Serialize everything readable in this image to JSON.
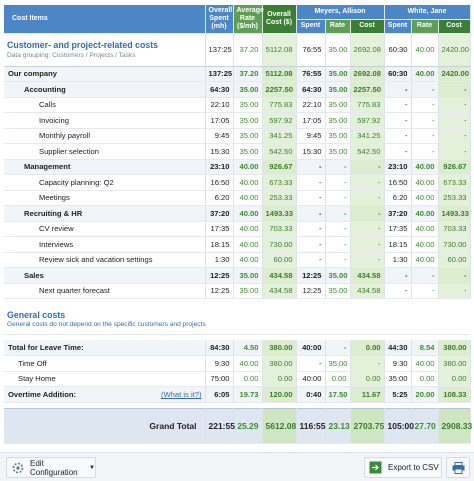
{
  "header": {
    "cost_items": "Cost Items",
    "overall_spent": "Overall Spent (mh)",
    "average_rate": "Average Rate ($/mh)",
    "overall_cost": "Overall Cost ($)",
    "people": [
      {
        "name": "Meyers, Allison",
        "columns": [
          "Spent",
          "Rate",
          "Cost"
        ]
      },
      {
        "name": "White, Jane",
        "columns": [
          "Spent",
          "Rate",
          "Cost"
        ]
      }
    ]
  },
  "customer_costs": {
    "title": "Customer- and project-related costs",
    "subtitle": "Data grouping: Customers / Projects / Tasks",
    "values": [
      "137:25",
      "37.20",
      "5112.08",
      "76:55",
      "35.00",
      "2692.08",
      "60:30",
      "40.00",
      "2420.00"
    ],
    "clients": [
      {
        "name": "Our company",
        "values": [
          "137:25",
          "37.20",
          "5112.08",
          "76:55",
          "35.00",
          "2692.08",
          "60:30",
          "40.00",
          "2420.00"
        ],
        "projects": [
          {
            "name": "Accounting",
            "values": [
              "64:30",
              "35.00",
              "2257.50",
              "64:30",
              "35.00",
              "2257.50",
              "-",
              "-",
              "-"
            ],
            "tasks": [
              {
                "name": "Calls",
                "values": [
                  "22:10",
                  "35.00",
                  "775.83",
                  "22:10",
                  "35.00",
                  "775.83",
                  "-",
                  "-",
                  "-"
                ]
              },
              {
                "name": "Invoicing",
                "values": [
                  "17:05",
                  "35.00",
                  "597.92",
                  "17:05",
                  "35.00",
                  "597.92",
                  "-",
                  "-",
                  "-"
                ]
              },
              {
                "name": "Monthly payroll",
                "values": [
                  "9:45",
                  "35.00",
                  "341.25",
                  "9:45",
                  "35.00",
                  "341.25",
                  "-",
                  "-",
                  "-"
                ]
              },
              {
                "name": "Supplier selection",
                "values": [
                  "15:30",
                  "35.00",
                  "542.50",
                  "15:30",
                  "35.00",
                  "542.50",
                  "-",
                  "-",
                  "-"
                ]
              }
            ]
          },
          {
            "name": "Management",
            "values": [
              "23:10",
              "40.00",
              "926.67",
              "-",
              "-",
              "-",
              "23:10",
              "40.00",
              "926.67"
            ],
            "tasks": [
              {
                "name": "Capacity planning: Q2",
                "values": [
                  "16:50",
                  "40.00",
                  "673.33",
                  "-",
                  "-",
                  "-",
                  "16:50",
                  "40.00",
                  "673.33"
                ]
              },
              {
                "name": "Meetings",
                "values": [
                  "6:20",
                  "40.00",
                  "253.33",
                  "-",
                  "-",
                  "-",
                  "6:20",
                  "40.00",
                  "253.33"
                ]
              }
            ]
          },
          {
            "name": "Recruiting & HR",
            "values": [
              "37:20",
              "40.00",
              "1493.33",
              "-",
              "-",
              "-",
              "37:20",
              "40.00",
              "1493.33"
            ],
            "tasks": [
              {
                "name": "CV review",
                "values": [
                  "17:35",
                  "40.00",
                  "703.33",
                  "-",
                  "-",
                  "-",
                  "17:35",
                  "40.00",
                  "703.33"
                ]
              },
              {
                "name": "Interviews",
                "values": [
                  "18:15",
                  "40.00",
                  "730.00",
                  "-",
                  "-",
                  "-",
                  "18:15",
                  "40.00",
                  "730.00"
                ]
              },
              {
                "name": "Review sick and vacation settings",
                "values": [
                  "1:30",
                  "40.00",
                  "60.00",
                  "-",
                  "-",
                  "-",
                  "1:30",
                  "40.00",
                  "60.00"
                ]
              }
            ]
          },
          {
            "name": "Sales",
            "values": [
              "12:25",
              "35.00",
              "434.58",
              "12:25",
              "35.00",
              "434.58",
              "-",
              "-",
              "-"
            ],
            "tasks": [
              {
                "name": "Next quarter forecast",
                "values": [
                  "12:25",
                  "35.00",
                  "434.58",
                  "12:25",
                  "35.00",
                  "434.58",
                  "-",
                  "-",
                  "-"
                ]
              }
            ]
          }
        ]
      }
    ]
  },
  "general_costs": {
    "title": "General costs",
    "subtitle": "General costs do not depend on the specific customers and projects",
    "rows": [
      {
        "name": "Total for Leave Time:",
        "values": [
          "84:30",
          "4.50",
          "380.00",
          "40:00",
          "-",
          "0.00",
          "44:30",
          "8.54",
          "380.00"
        ],
        "items": [
          {
            "name": "Time Off",
            "values": [
              "9:30",
              "40.00",
              "380.00",
              "-",
              "35.00",
              "-",
              "9:30",
              "40.00",
              "380.00"
            ]
          },
          {
            "name": "Stay Home",
            "values": [
              "75:00",
              "0.00",
              "0.00",
              "40:00",
              "0.00",
              "0.00",
              "35:00",
              "0.00",
              "0.00"
            ]
          }
        ]
      },
      {
        "name": "Overtime Addition:",
        "link": "(What is it?)",
        "values": [
          "6:05",
          "19.73",
          "120.00",
          "0:40",
          "17.50",
          "11.67",
          "5:25",
          "20.00",
          "108.33"
        ]
      }
    ]
  },
  "grand_total": {
    "label": "Grand Total",
    "values": [
      "221:55",
      "25.29",
      "5612.08",
      "116:55",
      "23.13",
      "2703.75",
      "105:00",
      "27.70",
      "2908.33"
    ]
  },
  "toolbar": {
    "edit_configuration": "Edit Configuration",
    "export": "Export to CSV"
  }
}
